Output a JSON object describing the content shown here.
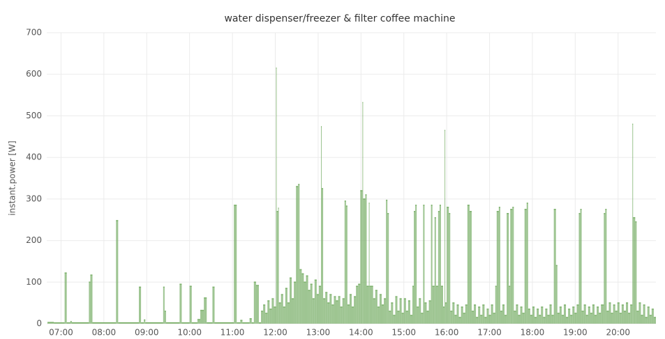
{
  "chart_data": {
    "type": "step-area",
    "title": "water dispenser/freezer & filter coffee machine",
    "y_label": "instant.power [W]",
    "xlim": [
      "06:40",
      "20:53"
    ],
    "xticks": [
      "07:00",
      "08:00",
      "09:00",
      "10:00",
      "11:00",
      "12:00",
      "13:00",
      "14:00",
      "15:00",
      "16:00",
      "17:00",
      "18:00",
      "19:00",
      "20:00"
    ],
    "ylim": [
      0,
      700
    ],
    "yticks": [
      0,
      100,
      200,
      300,
      400,
      500,
      600,
      700
    ],
    "grid": true,
    "series": [
      {
        "color": "#7eb26d",
        "x": [
          "06:41",
          "06:50",
          "07:05",
          "07:08",
          "07:13",
          "07:15",
          "07:39",
          "07:41",
          "07:44",
          "08:17",
          "08:20",
          "08:49",
          "08:52",
          "08:56",
          "08:58",
          "09:23",
          "09:25",
          "09:27",
          "09:46",
          "09:49",
          "10:00",
          "10:03",
          "10:11",
          "10:15",
          "10:20",
          "10:24",
          "10:32",
          "10:35",
          "11:02",
          "11:06",
          "11:11",
          "11:14",
          "11:24",
          "11:27",
          "11:30",
          "11:33",
          "11:37",
          "11:40",
          "11:43",
          "11:46",
          "11:49",
          "11:52",
          "11:55",
          "11:58",
          "12:01",
          "12:02",
          "12:04",
          "12:05",
          "12:08",
          "12:11",
          "12:14",
          "12:17",
          "12:20",
          "12:23",
          "12:26",
          "12:29",
          "12:32",
          "12:34",
          "12:37",
          "12:40",
          "12:43",
          "12:46",
          "12:49",
          "12:52",
          "12:55",
          "12:58",
          "13:01",
          "13:04",
          "13:05",
          "13:07",
          "13:10",
          "13:13",
          "13:16",
          "13:19",
          "13:22",
          "13:25",
          "13:28",
          "13:31",
          "13:34",
          "13:37",
          "13:39",
          "13:41",
          "13:44",
          "13:47",
          "13:50",
          "13:53",
          "13:56",
          "13:59",
          "14:02",
          "14:03",
          "14:06",
          "14:08",
          "14:11",
          "14:12",
          "14:17",
          "14:20",
          "14:23",
          "14:26",
          "14:29",
          "14:32",
          "14:35",
          "14:37",
          "14:39",
          "14:42",
          "14:45",
          "14:48",
          "14:51",
          "14:54",
          "14:57",
          "15:00",
          "15:03",
          "15:06",
          "15:09",
          "15:12",
          "15:14",
          "15:16",
          "15:18",
          "15:21",
          "15:24",
          "15:27",
          "15:29",
          "15:32",
          "15:35",
          "15:38",
          "15:40",
          "15:43",
          "15:45",
          "15:48",
          "15:50",
          "15:52",
          "15:55",
          "15:57",
          "15:58",
          "16:00",
          "16:03",
          "16:05",
          "16:08",
          "16:11",
          "16:14",
          "16:17",
          "16:20",
          "16:23",
          "16:26",
          "16:29",
          "16:32",
          "16:35",
          "16:38",
          "16:41",
          "16:44",
          "16:47",
          "16:50",
          "16:53",
          "16:56",
          "16:59",
          "17:02",
          "17:05",
          "17:08",
          "17:10",
          "17:13",
          "17:15",
          "17:18",
          "17:21",
          "17:24",
          "17:27",
          "17:29",
          "17:32",
          "17:34",
          "17:37",
          "17:40",
          "17:43",
          "17:46",
          "17:49",
          "17:52",
          "17:54",
          "17:57",
          "18:00",
          "18:03",
          "18:06",
          "18:09",
          "18:12",
          "18:15",
          "18:18",
          "18:21",
          "18:24",
          "18:27",
          "18:30",
          "18:33",
          "18:35",
          "18:38",
          "18:41",
          "18:44",
          "18:47",
          "18:50",
          "18:53",
          "18:56",
          "18:59",
          "19:02",
          "19:05",
          "19:07",
          "19:09",
          "19:12",
          "19:15",
          "19:18",
          "19:21",
          "19:24",
          "19:27",
          "19:30",
          "19:33",
          "19:36",
          "19:40",
          "19:42",
          "19:44",
          "19:47",
          "19:50",
          "19:53",
          "19:56",
          "19:59",
          "20:02",
          "20:05",
          "20:08",
          "20:11",
          "20:14",
          "20:17",
          "20:20",
          "20:21",
          "20:24",
          "20:26",
          "20:29",
          "20:32",
          "20:35",
          "20:38",
          "20:41",
          "20:44",
          "20:47",
          "20:50"
        ],
        "values": [
          3,
          2,
          122,
          2,
          5,
          2,
          100,
          117,
          2,
          248,
          2,
          88,
          2,
          9,
          2,
          88,
          30,
          2,
          95,
          2,
          90,
          2,
          10,
          32,
          62,
          2,
          88,
          2,
          285,
          2,
          8,
          2,
          12,
          2,
          100,
          92,
          2,
          30,
          45,
          25,
          55,
          35,
          60,
          40,
          615,
          270,
          278,
          50,
          70,
          40,
          85,
          50,
          110,
          60,
          100,
          330,
          335,
          130,
          120,
          100,
          115,
          80,
          95,
          60,
          105,
          70,
          90,
          474,
          325,
          60,
          75,
          50,
          70,
          45,
          65,
          55,
          65,
          40,
          60,
          295,
          283,
          45,
          70,
          40,
          65,
          90,
          95,
          320,
          532,
          300,
          310,
          90,
          290,
          90,
          60,
          80,
          40,
          70,
          45,
          60,
          297,
          265,
          30,
          50,
          20,
          65,
          30,
          60,
          25,
          60,
          30,
          55,
          20,
          90,
          270,
          285,
          40,
          60,
          25,
          285,
          50,
          30,
          55,
          285,
          90,
          255,
          90,
          270,
          285,
          90,
          40,
          465,
          50,
          280,
          265,
          30,
          50,
          20,
          45,
          15,
          40,
          25,
          45,
          285,
          270,
          30,
          45,
          15,
          40,
          20,
          45,
          15,
          35,
          20,
          45,
          25,
          90,
          270,
          280,
          30,
          45,
          20,
          265,
          90,
          275,
          280,
          30,
          45,
          20,
          40,
          25,
          275,
          290,
          35,
          20,
          40,
          15,
          35,
          20,
          40,
          15,
          35,
          20,
          45,
          20,
          275,
          140,
          25,
          40,
          20,
          45,
          15,
          35,
          20,
          40,
          25,
          45,
          265,
          275,
          30,
          45,
          20,
          40,
          25,
          45,
          20,
          40,
          25,
          45,
          265,
          275,
          30,
          50,
          25,
          45,
          30,
          50,
          25,
          45,
          30,
          50,
          25,
          45,
          480,
          255,
          245,
          30,
          50,
          20,
          45,
          15,
          40,
          20,
          35,
          15
        ]
      }
    ]
  }
}
